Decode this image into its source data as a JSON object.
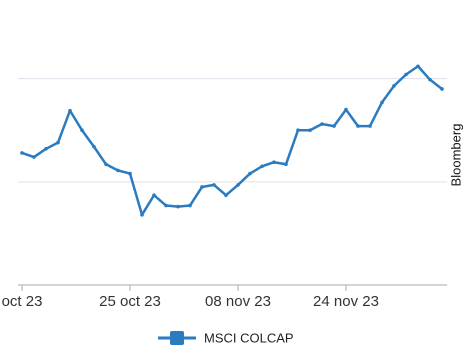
{
  "chart_data": {
    "type": "line",
    "source": "Bloomberg",
    "categories": [
      "oct 23",
      null,
      null,
      null,
      null,
      null,
      null,
      null,
      null,
      "25 oct 23",
      null,
      null,
      null,
      null,
      null,
      null,
      null,
      null,
      "08 nov 23",
      null,
      null,
      null,
      null,
      null,
      null,
      null,
      null,
      "24 nov 23",
      null,
      null,
      null,
      null,
      null,
      null,
      null,
      null
    ],
    "series": [
      {
        "name": "MSCI COLCAP",
        "color": "#2a7bc0",
        "values": [
          1.28,
          1.24,
          1.32,
          1.38,
          1.69,
          1.5,
          1.34,
          1.17,
          1.11,
          1.08,
          0.68,
          0.87,
          0.77,
          0.76,
          0.77,
          0.95,
          0.97,
          0.87,
          0.97,
          1.08,
          1.15,
          1.19,
          1.17,
          1.5,
          1.5,
          1.56,
          1.54,
          1.7,
          1.54,
          1.54,
          1.77,
          1.93,
          2.04,
          2.12,
          1.99,
          1.9
        ]
      }
    ],
    "ylim": [
      0,
      2.2
    ],
    "yticks": [
      0,
      1,
      2
    ],
    "grid": true
  }
}
